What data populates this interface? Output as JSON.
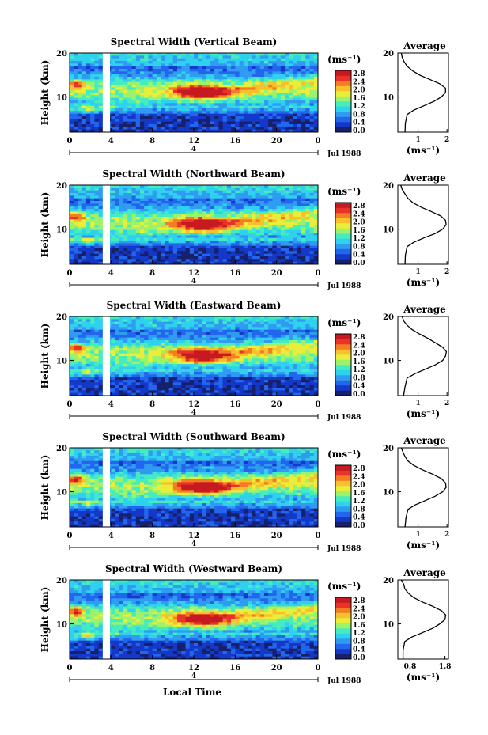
{
  "chart_data": {
    "type": "heatmap",
    "date_label": "Jul 1988",
    "common_xlabel": "Local Time",
    "marker_label": "4",
    "colorbar": {
      "unit": "(ms⁻¹)",
      "ticks": [
        "2.8",
        "2.4",
        "2.0",
        "1.6",
        "1.2",
        "0.8",
        "0.4",
        "0.0"
      ],
      "range": [
        0.0,
        3.0
      ],
      "colors": [
        "#17206b",
        "#1438c8",
        "#2266ee",
        "#2f9cf2",
        "#2fd1ee",
        "#44ecc0",
        "#9cf26a",
        "#e9ee3a",
        "#f8c02c",
        "#f47d22",
        "#e9322a",
        "#c61a20"
      ]
    },
    "xlim": [
      0,
      24
    ],
    "ylim": [
      2,
      20
    ],
    "data_gap_hours": [
      3.2,
      3.9
    ],
    "panels": [
      {
        "title": "Spectral Width (Vertical Beam)",
        "ylabel": "Height (km)",
        "xticks": [
          "0",
          "4",
          "8",
          "12",
          "16",
          "20",
          "0"
        ],
        "yticks": [
          "20",
          "10"
        ],
        "average": {
          "title": "Average",
          "xlabel": "(ms⁻¹)",
          "xticks": [
            "1",
            "2"
          ],
          "xlim": [
            0.3,
            2.05
          ],
          "yticks": [
            "20",
            "10"
          ],
          "profile": [
            [
              0.55,
              2
            ],
            [
              0.56,
              4
            ],
            [
              0.62,
              6
            ],
            [
              0.85,
              7
            ],
            [
              1.2,
              8
            ],
            [
              1.55,
              9
            ],
            [
              1.8,
              10
            ],
            [
              1.95,
              11
            ],
            [
              1.95,
              12
            ],
            [
              1.75,
              13
            ],
            [
              1.4,
              14
            ],
            [
              1.05,
              15
            ],
            [
              0.8,
              16
            ],
            [
              0.62,
              17
            ],
            [
              0.52,
              18
            ],
            [
              0.45,
              19
            ],
            [
              0.42,
              20
            ]
          ]
        }
      },
      {
        "title": "Spectral Width (Northward Beam)",
        "ylabel": "Height (km)",
        "xticks": [
          "0",
          "4",
          "8",
          "12",
          "16",
          "20",
          "0"
        ],
        "yticks": [
          "20",
          "10"
        ],
        "average": {
          "title": "Average",
          "xlabel": "(ms⁻¹)",
          "xticks": [
            "1",
            "2"
          ],
          "xlim": [
            0.3,
            2.05
          ],
          "yticks": [
            "20",
            "10"
          ],
          "profile": [
            [
              0.55,
              2
            ],
            [
              0.56,
              4
            ],
            [
              0.62,
              6
            ],
            [
              0.85,
              7
            ],
            [
              1.2,
              8
            ],
            [
              1.6,
              9
            ],
            [
              1.85,
              10
            ],
            [
              1.97,
              11
            ],
            [
              1.95,
              12
            ],
            [
              1.78,
              13
            ],
            [
              1.45,
              14
            ],
            [
              1.1,
              15
            ],
            [
              0.82,
              16
            ],
            [
              0.65,
              17
            ],
            [
              0.55,
              18
            ],
            [
              0.45,
              19
            ],
            [
              0.4,
              20
            ]
          ]
        }
      },
      {
        "title": "Spectral Width (Eastward Beam)",
        "ylabel": "Height (km)",
        "xticks": [
          "0",
          "4",
          "8",
          "12",
          "16",
          "20",
          "0"
        ],
        "yticks": [
          "20",
          "10"
        ],
        "average": {
          "title": "Average",
          "xlabel": "(ms⁻¹)",
          "xticks": [
            "1",
            "2"
          ],
          "xlim": [
            0.3,
            2.05
          ],
          "yticks": [
            "20",
            "10"
          ],
          "profile": [
            [
              0.5,
              2
            ],
            [
              0.55,
              4
            ],
            [
              0.62,
              6
            ],
            [
              0.9,
              7
            ],
            [
              1.25,
              8
            ],
            [
              1.6,
              9
            ],
            [
              1.85,
              10
            ],
            [
              1.95,
              11
            ],
            [
              1.98,
              12
            ],
            [
              1.85,
              13
            ],
            [
              1.6,
              14
            ],
            [
              1.35,
              15
            ],
            [
              1.05,
              16
            ],
            [
              0.8,
              17
            ],
            [
              0.62,
              18
            ],
            [
              0.5,
              19
            ],
            [
              0.45,
              20
            ]
          ]
        }
      },
      {
        "title": "Spectral Width (Southward Beam)",
        "ylabel": "Height (km)",
        "xticks": [
          "0",
          "4",
          "8",
          "12",
          "16",
          "20",
          "0"
        ],
        "yticks": [
          "20",
          "10"
        ],
        "average": {
          "title": "Average",
          "xlabel": "(ms⁻¹)",
          "xticks": [
            "1",
            "2"
          ],
          "xlim": [
            0.3,
            2.05
          ],
          "yticks": [
            "20",
            "10"
          ],
          "profile": [
            [
              0.55,
              2
            ],
            [
              0.58,
              4
            ],
            [
              0.65,
              6
            ],
            [
              0.9,
              7
            ],
            [
              1.25,
              8
            ],
            [
              1.6,
              9
            ],
            [
              1.85,
              10
            ],
            [
              1.97,
              11
            ],
            [
              1.95,
              12
            ],
            [
              1.8,
              13
            ],
            [
              1.5,
              14
            ],
            [
              1.15,
              15
            ],
            [
              0.85,
              16
            ],
            [
              0.65,
              17
            ],
            [
              0.55,
              18
            ],
            [
              0.48,
              19
            ],
            [
              0.42,
              20
            ]
          ]
        }
      },
      {
        "title": "Spectral Width (Westward Beam)",
        "ylabel": "Height (km)",
        "xticks": [
          "0",
          "4",
          "8",
          "12",
          "16",
          "20",
          "0"
        ],
        "yticks": [
          "20",
          "10"
        ],
        "average": {
          "title": "Average",
          "xlabel": "(ms⁻¹)",
          "xticks": [
            "0.8",
            "1.8"
          ],
          "xlim": [
            0.45,
            1.9
          ],
          "yticks": [
            "20",
            "10"
          ],
          "profile": [
            [
              0.6,
              2
            ],
            [
              0.6,
              4
            ],
            [
              0.65,
              6
            ],
            [
              0.85,
              7
            ],
            [
              1.15,
              8
            ],
            [
              1.45,
              9
            ],
            [
              1.65,
              10
            ],
            [
              1.8,
              11
            ],
            [
              1.82,
              12
            ],
            [
              1.7,
              13
            ],
            [
              1.45,
              14
            ],
            [
              1.15,
              15
            ],
            [
              0.9,
              16
            ],
            [
              0.75,
              17
            ],
            [
              0.65,
              18
            ],
            [
              0.62,
              19
            ],
            [
              0.55,
              20
            ]
          ]
        }
      }
    ]
  }
}
